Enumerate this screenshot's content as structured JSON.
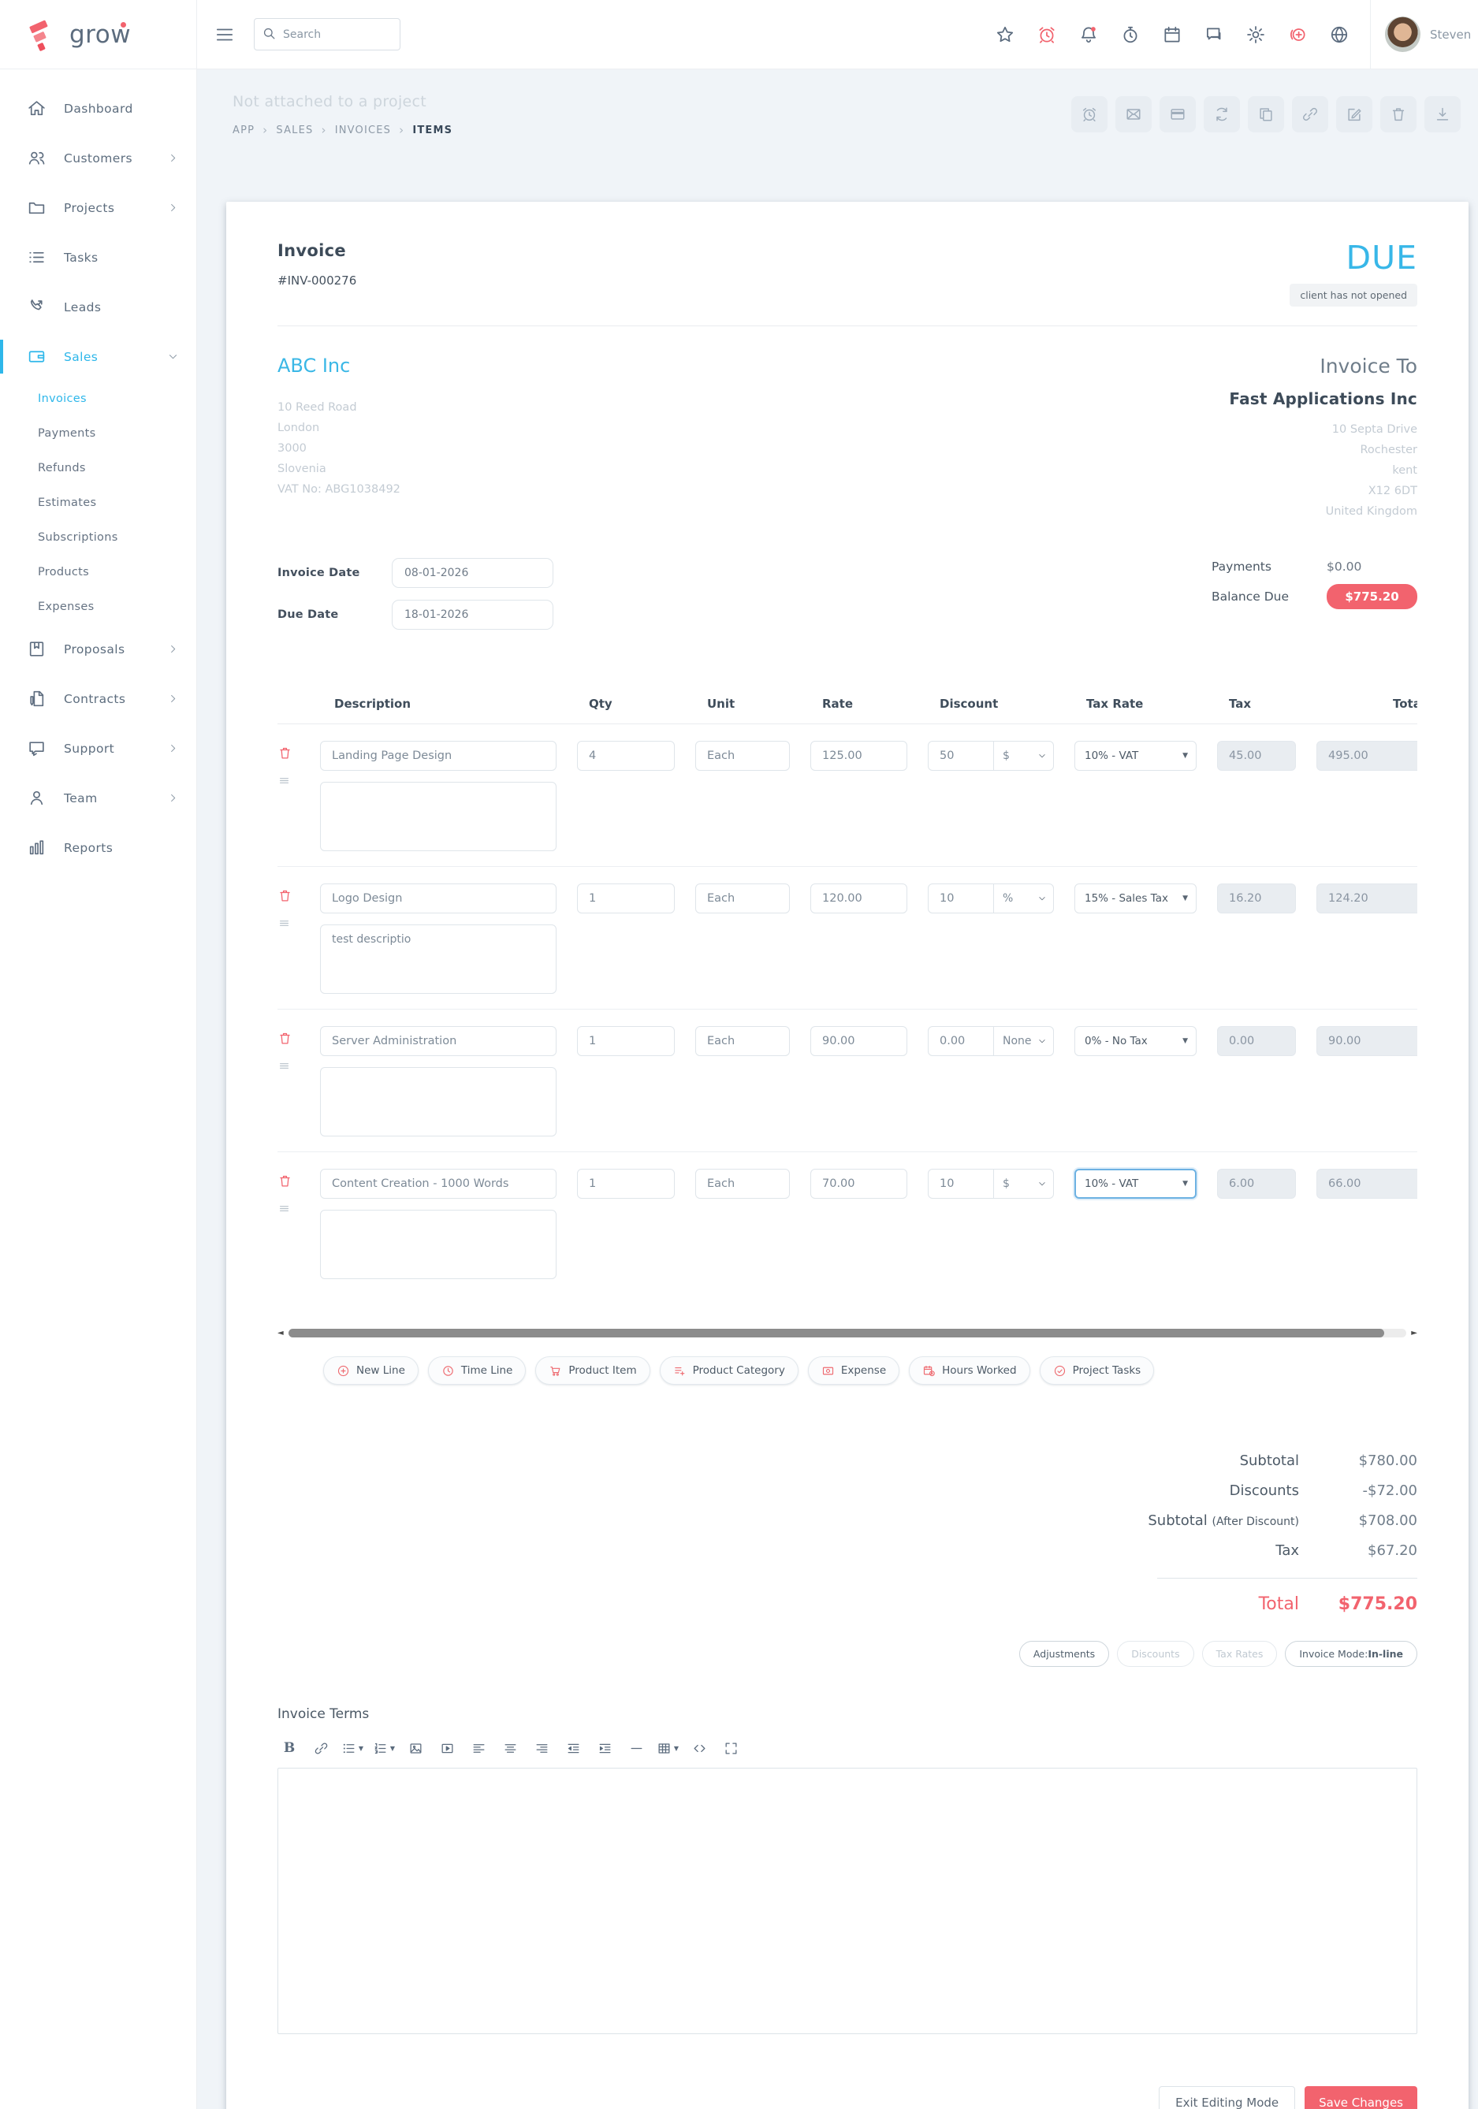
{
  "brand": {
    "name": "grow"
  },
  "topbar": {
    "search_placeholder": "Search",
    "user_name": "Steven",
    "icons": [
      "star-icon",
      "alarm-icon",
      "bell-icon",
      "stopwatch-icon",
      "calendar-icon",
      "chat-icon",
      "gear-icon",
      "add-circle-icon",
      "globe-icon"
    ]
  },
  "sidebar": {
    "items": [
      {
        "label": "Dashboard"
      },
      {
        "label": "Customers"
      },
      {
        "label": "Projects"
      },
      {
        "label": "Tasks"
      },
      {
        "label": "Leads"
      },
      {
        "label": "Sales"
      },
      {
        "label": "Proposals"
      },
      {
        "label": "Contracts"
      },
      {
        "label": "Support"
      },
      {
        "label": "Team"
      },
      {
        "label": "Reports"
      }
    ],
    "sales_children": [
      {
        "label": "Invoices"
      },
      {
        "label": "Payments"
      },
      {
        "label": "Refunds"
      },
      {
        "label": "Estimates"
      },
      {
        "label": "Subscriptions"
      },
      {
        "label": "Products"
      },
      {
        "label": "Expenses"
      }
    ]
  },
  "page": {
    "note": "Not attached to a project",
    "breadcrumb": [
      "APP",
      "SALES",
      "INVOICES",
      "ITEMS"
    ],
    "actions": [
      "reminder-icon",
      "email-icon",
      "payment-card-icon",
      "refresh-icon",
      "copy-icon",
      "link-icon",
      "edit-icon",
      "trash-icon",
      "download-icon"
    ]
  },
  "invoice": {
    "title": "Invoice",
    "number": "#INV-000276",
    "status": "DUE",
    "status_note": "client has not opened",
    "from": {
      "name": "ABC Inc",
      "address": [
        "10 Reed Road",
        "London",
        "3000",
        "Slovenia",
        "VAT No: ABG1038492"
      ]
    },
    "to": {
      "heading": "Invoice To",
      "name": "Fast Applications Inc",
      "address": [
        "10 Septa Drive",
        "Rochester",
        "kent",
        "X12 6DT",
        "United Kingdom"
      ]
    },
    "invoice_date": {
      "label": "Invoice Date",
      "value": "08-01-2026"
    },
    "due_date": {
      "label": "Due Date",
      "value": "18-01-2026"
    },
    "payments": {
      "label": "Payments",
      "value": "$0.00"
    },
    "balance": {
      "label": "Balance Due",
      "value": "$775.20"
    }
  },
  "items": {
    "headers": {
      "description": "Description",
      "qty": "Qty",
      "unit": "Unit",
      "rate": "Rate",
      "discount": "Discount",
      "tax_rate": "Tax Rate",
      "tax": "Tax",
      "total": "Total"
    },
    "rows": [
      {
        "description": "Landing Page Design",
        "qty": "4",
        "unit": "Each",
        "rate": "125.00",
        "discount": "50",
        "discount_type": "$",
        "tax_rate": "10% - VAT",
        "tax": "45.00",
        "total": "495.00",
        "note": ""
      },
      {
        "description": "Logo Design",
        "qty": "1",
        "unit": "Each",
        "rate": "120.00",
        "discount": "10",
        "discount_type": "%",
        "tax_rate": "15% - Sales Tax",
        "tax": "16.20",
        "total": "124.20",
        "note": "test descriptio"
      },
      {
        "description": "Server Administration",
        "qty": "1",
        "unit": "Each",
        "rate": "90.00",
        "discount": "0.00",
        "discount_type": "None",
        "tax_rate": "0% - No Tax",
        "tax": "0.00",
        "total": "90.00",
        "note": ""
      },
      {
        "description": "Content Creation - 1000 Words",
        "qty": "1",
        "unit": "Each",
        "rate": "70.00",
        "discount": "10",
        "discount_type": "$",
        "tax_rate": "10% - VAT",
        "tax": "6.00",
        "total": "66.00",
        "note": ""
      }
    ],
    "add_buttons": [
      {
        "label": "New Line",
        "icon": "plus-circle-icon"
      },
      {
        "label": "Time Line",
        "icon": "clock-icon"
      },
      {
        "label": "Product Item",
        "icon": "cart-icon"
      },
      {
        "label": "Product Category",
        "icon": "category-icon"
      },
      {
        "label": "Expense",
        "icon": "expense-icon"
      },
      {
        "label": "Hours Worked",
        "icon": "hours-icon"
      },
      {
        "label": "Project Tasks",
        "icon": "check-circle-icon"
      }
    ]
  },
  "totals": {
    "rows": [
      {
        "label": "Subtotal",
        "sublabel": "",
        "value": "$780.00"
      },
      {
        "label": "Discounts",
        "sublabel": "",
        "value": "-$72.00"
      },
      {
        "label": "Subtotal",
        "sublabel": "(After Discount)",
        "value": "$708.00"
      },
      {
        "label": "Tax",
        "sublabel": "",
        "value": "$67.20"
      }
    ],
    "total": {
      "label": "Total",
      "value": "$775.20"
    },
    "pills": {
      "adjustments": "Adjustments",
      "discounts": "Discounts",
      "tax_rates": "Tax Rates",
      "mode_prefix": "Invoice Mode: ",
      "mode_value": "In-line"
    }
  },
  "terms": {
    "heading": "Invoice Terms",
    "toolbar": [
      "bold-icon",
      "link-icon",
      "bullet-list-icon",
      "numbered-list-icon",
      "image-icon",
      "video-icon",
      "align-left-icon",
      "align-center-icon",
      "align-right-icon",
      "outdent-icon",
      "indent-icon",
      "horizontal-rule-icon",
      "table-icon",
      "code-icon",
      "fullscreen-icon"
    ]
  },
  "footer": {
    "exit": "Exit Editing Mode",
    "save": "Save Changes"
  },
  "colors": {
    "accent_blue": "#38b7e8",
    "accent_red": "#f2636e",
    "sidebar_active": "#2eb7ea"
  }
}
